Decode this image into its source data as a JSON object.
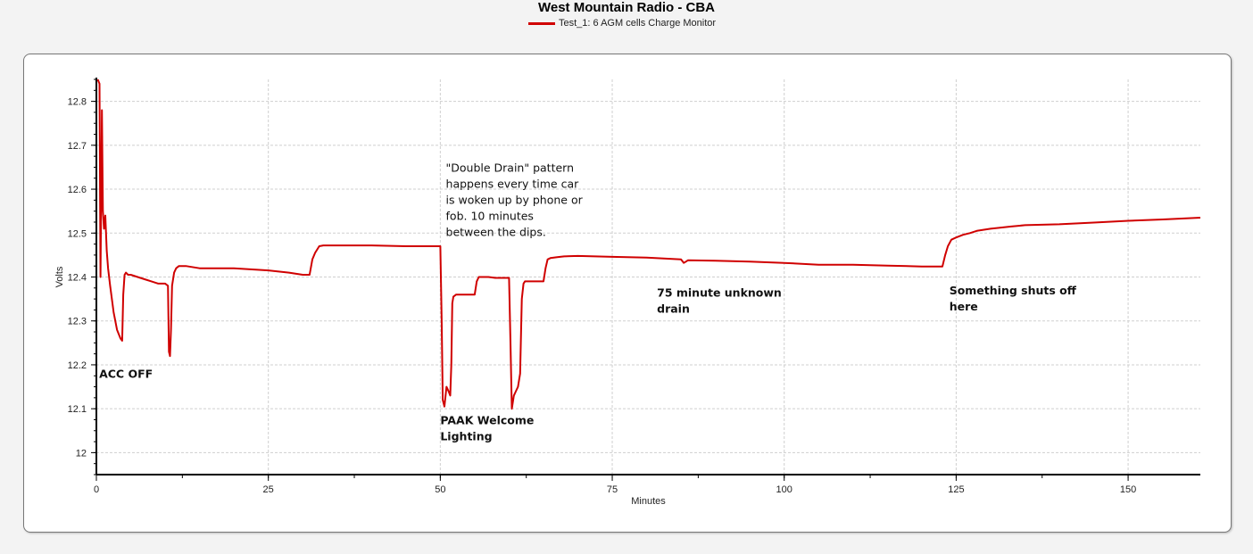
{
  "chart_data": {
    "type": "line",
    "title": "West Mountain Radio - CBA",
    "legend": {
      "placement": "top-center",
      "entries": [
        "Test_1: 6 AGM cells Charge Monitor"
      ]
    },
    "xlabel": "Minutes",
    "ylabel": "Volts",
    "xlim": [
      0,
      160.5
    ],
    "ylim": [
      11.95,
      12.85
    ],
    "xticks": [
      0,
      25,
      50,
      75,
      100,
      125,
      150
    ],
    "yticks": [
      12,
      12.1,
      12.2,
      12.3,
      12.4,
      12.5,
      12.6,
      12.7,
      12.8
    ],
    "grid": true,
    "color": "#d00000",
    "series": [
      {
        "name": "Test_1: 6 AGM cells Charge Monitor",
        "x": [
          0.2,
          0.45,
          0.6,
          0.8,
          0.95,
          1.1,
          1.3,
          1.5,
          1.7,
          2.0,
          2.5,
          3.0,
          3.5,
          3.75,
          3.9,
          4.1,
          4.3,
          4.6,
          5.0,
          6.0,
          7.0,
          8.0,
          9.0,
          10.0,
          10.4,
          10.55,
          10.7,
          10.85,
          11.0,
          11.3,
          11.6,
          12.0,
          13.0,
          15.0,
          20.0,
          25.0,
          28.0,
          30.0,
          31.0,
          31.4,
          31.8,
          32.4,
          33.0,
          35.0,
          40.0,
          45.0,
          50.0,
          50.2,
          50.35,
          50.6,
          50.9,
          51.2,
          51.45,
          51.6,
          51.75,
          51.9,
          52.3,
          53.0,
          54.0,
          55.0,
          55.3,
          55.6,
          56.0,
          57.0,
          58.0,
          59.0,
          60.0,
          60.2,
          60.4,
          60.7,
          61.0,
          61.3,
          61.6,
          61.85,
          62.1,
          62.3,
          62.8,
          63.5,
          64.5,
          65.0,
          65.3,
          65.6,
          66.0,
          67.0,
          68.0,
          70.0,
          75.0,
          80.0,
          85.0,
          85.4,
          85.7,
          86.0,
          90.0,
          95.0,
          100.0,
          105.0,
          110.0,
          115.0,
          120.0,
          123.0,
          123.4,
          123.8,
          124.3,
          125.0,
          126.0,
          127.0,
          128.0,
          130.0,
          133.0,
          135.0,
          140.0,
          145.0,
          150.0,
          155.0,
          160.5
        ],
        "y": [
          12.85,
          12.84,
          12.4,
          12.78,
          12.55,
          12.51,
          12.54,
          12.46,
          12.42,
          12.38,
          12.32,
          12.28,
          12.26,
          12.255,
          12.36,
          12.405,
          12.41,
          12.405,
          12.405,
          12.4,
          12.395,
          12.39,
          12.385,
          12.385,
          12.38,
          12.23,
          12.22,
          12.28,
          12.38,
          12.41,
          12.42,
          12.425,
          12.425,
          12.42,
          12.42,
          12.415,
          12.41,
          12.405,
          12.405,
          12.44,
          12.455,
          12.47,
          12.472,
          12.472,
          12.472,
          12.47,
          12.47,
          12.3,
          12.12,
          12.105,
          12.15,
          12.14,
          12.13,
          12.2,
          12.34,
          12.355,
          12.36,
          12.36,
          12.36,
          12.36,
          12.39,
          12.4,
          12.4,
          12.4,
          12.398,
          12.398,
          12.398,
          12.25,
          12.1,
          12.13,
          12.14,
          12.15,
          12.18,
          12.35,
          12.385,
          12.39,
          12.39,
          12.39,
          12.39,
          12.39,
          12.42,
          12.44,
          12.443,
          12.445,
          12.447,
          12.448,
          12.446,
          12.444,
          12.44,
          12.432,
          12.435,
          12.438,
          12.437,
          12.435,
          12.432,
          12.428,
          12.428,
          12.426,
          12.424,
          12.424,
          12.45,
          12.47,
          12.485,
          12.49,
          12.496,
          12.5,
          12.505,
          12.51,
          12.515,
          12.518,
          12.52,
          12.524,
          12.528,
          12.531,
          12.535
        ]
      }
    ],
    "annotations": [
      {
        "id": "acc-off",
        "lines": [
          "ACC OFF"
        ],
        "bold": true,
        "x": 0.4,
        "y": 12.17
      },
      {
        "id": "double-drain",
        "lines": [
          "\"Double Drain\" pattern",
          "happens every time car",
          "is woken up by phone or",
          "fob. 10 minutes",
          "between the dips."
        ],
        "bold": false,
        "x": 50.8,
        "y": 12.64
      },
      {
        "id": "paak",
        "lines": [
          "PAAK Welcome",
          "Lighting"
        ],
        "bold": true,
        "x": 50.0,
        "y": 12.065
      },
      {
        "id": "unknown-drain",
        "lines": [
          "75 minute unknown",
          "drain"
        ],
        "bold": true,
        "x": 81.5,
        "y": 12.355
      },
      {
        "id": "shuts-off",
        "lines": [
          "Something shuts off",
          "here"
        ],
        "bold": true,
        "x": 124.0,
        "y": 12.36
      }
    ]
  }
}
